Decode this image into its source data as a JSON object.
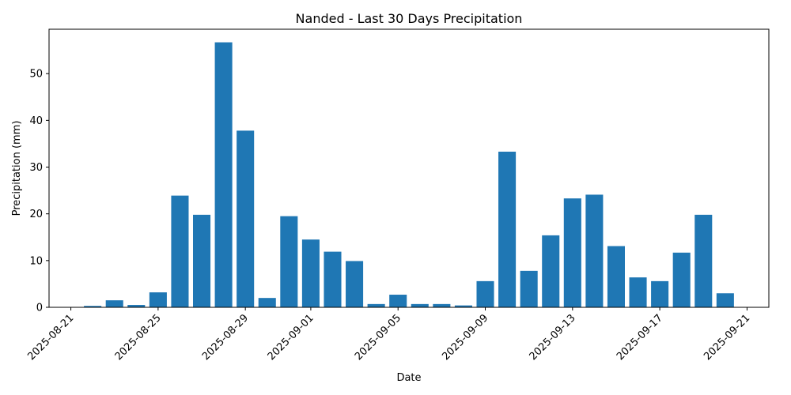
{
  "chart_data": {
    "type": "bar",
    "title": "Nanded - Last 30 Days Precipitation",
    "xlabel": "Date",
    "ylabel": "Precipitation (mm)",
    "bar_color": "#1f77b4",
    "x": [
      "2025-08-22",
      "2025-08-23",
      "2025-08-24",
      "2025-08-25",
      "2025-08-26",
      "2025-08-27",
      "2025-08-28",
      "2025-08-29",
      "2025-08-30",
      "2025-08-31",
      "2025-09-01",
      "2025-09-02",
      "2025-09-03",
      "2025-09-04",
      "2025-09-05",
      "2025-09-06",
      "2025-09-07",
      "2025-09-08",
      "2025-09-09",
      "2025-09-10",
      "2025-09-11",
      "2025-09-12",
      "2025-09-13",
      "2025-09-14",
      "2025-09-15",
      "2025-09-16",
      "2025-09-17",
      "2025-09-18",
      "2025-09-19",
      "2025-09-20"
    ],
    "values": [
      0.3,
      1.5,
      0.5,
      3.2,
      23.9,
      19.8,
      56.7,
      37.8,
      2.0,
      19.5,
      14.5,
      11.9,
      9.9,
      0.7,
      2.7,
      0.7,
      0.7,
      0.4,
      5.6,
      33.3,
      7.8,
      15.4,
      23.3,
      24.1,
      13.1,
      6.4,
      5.6,
      11.7,
      19.8,
      3.0
    ],
    "x_ticks": [
      "2025-08-21",
      "2025-08-25",
      "2025-08-29",
      "2025-09-01",
      "2025-09-05",
      "2025-09-09",
      "2025-09-13",
      "2025-09-17",
      "2025-09-21"
    ],
    "y_ticks": [
      0,
      10,
      20,
      30,
      40,
      50
    ],
    "xlim": [
      "2025-08-20",
      "2025-09-22"
    ],
    "ylim": [
      0,
      59.5
    ],
    "grid": false,
    "legend": "none"
  }
}
